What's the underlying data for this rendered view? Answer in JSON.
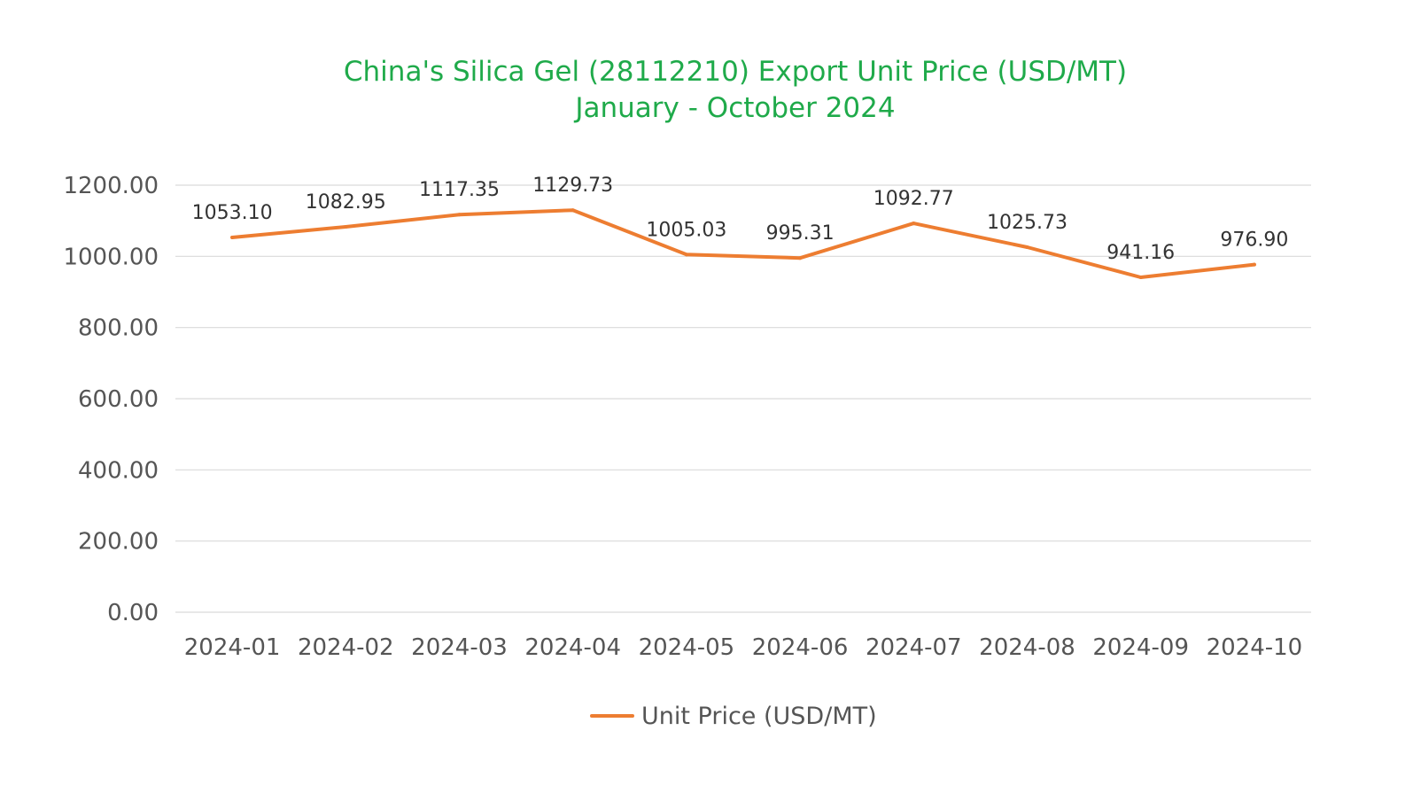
{
  "chart_data": {
    "type": "line",
    "title": "China's Silica Gel (28112210) Export Unit Price (USD/MT)",
    "subtitle": "January - October 2024",
    "xlabel": "",
    "ylabel": "",
    "categories": [
      "2024-01",
      "2024-02",
      "2024-03",
      "2024-04",
      "2024-05",
      "2024-06",
      "2024-07",
      "2024-08",
      "2024-09",
      "2024-10"
    ],
    "series": [
      {
        "name": "Unit Price (USD/MT)",
        "values": [
          1053.1,
          1082.95,
          1117.35,
          1129.73,
          1005.03,
          995.31,
          1092.77,
          1025.73,
          941.16,
          976.9
        ],
        "labels": [
          "1053.10",
          "1082.95",
          "1117.35",
          "1129.73",
          "1005.03",
          "995.31",
          "1092.77",
          "1025.73",
          "941.16",
          "976.90"
        ],
        "color": "#ed7d31"
      }
    ],
    "ylim": [
      0,
      1200
    ],
    "yticks": [
      0,
      200,
      400,
      600,
      800,
      1000,
      1200
    ],
    "ytick_labels": [
      "0.00",
      "200.00",
      "400.00",
      "600.00",
      "800.00",
      "1000.00",
      "1200.00"
    ],
    "grid": true,
    "legend_position": "bottom",
    "title_color": "#1faa4a"
  }
}
